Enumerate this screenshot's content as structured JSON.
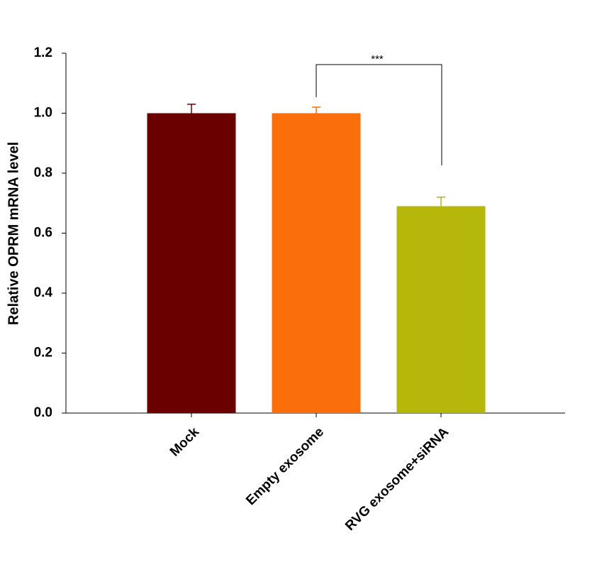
{
  "chart_data": {
    "type": "bar",
    "ylabel": "Relative OPRM mRNA level",
    "categories": [
      "Mock",
      "Empty exosome",
      "RVG exosome+siRNA"
    ],
    "values": [
      1.0,
      1.0,
      0.69
    ],
    "errors": [
      0.03,
      0.02,
      0.03
    ],
    "colors": [
      "#6b0000",
      "#fa6e0c",
      "#b5b70a"
    ],
    "ylim": [
      0,
      1.2
    ],
    "yticks": [
      {
        "value": 0,
        "label": "0.0"
      },
      0.2,
      0.4,
      0.6,
      0.8,
      {
        "value": 1,
        "label": "1.0"
      },
      1.2
    ],
    "annotation": "***"
  }
}
